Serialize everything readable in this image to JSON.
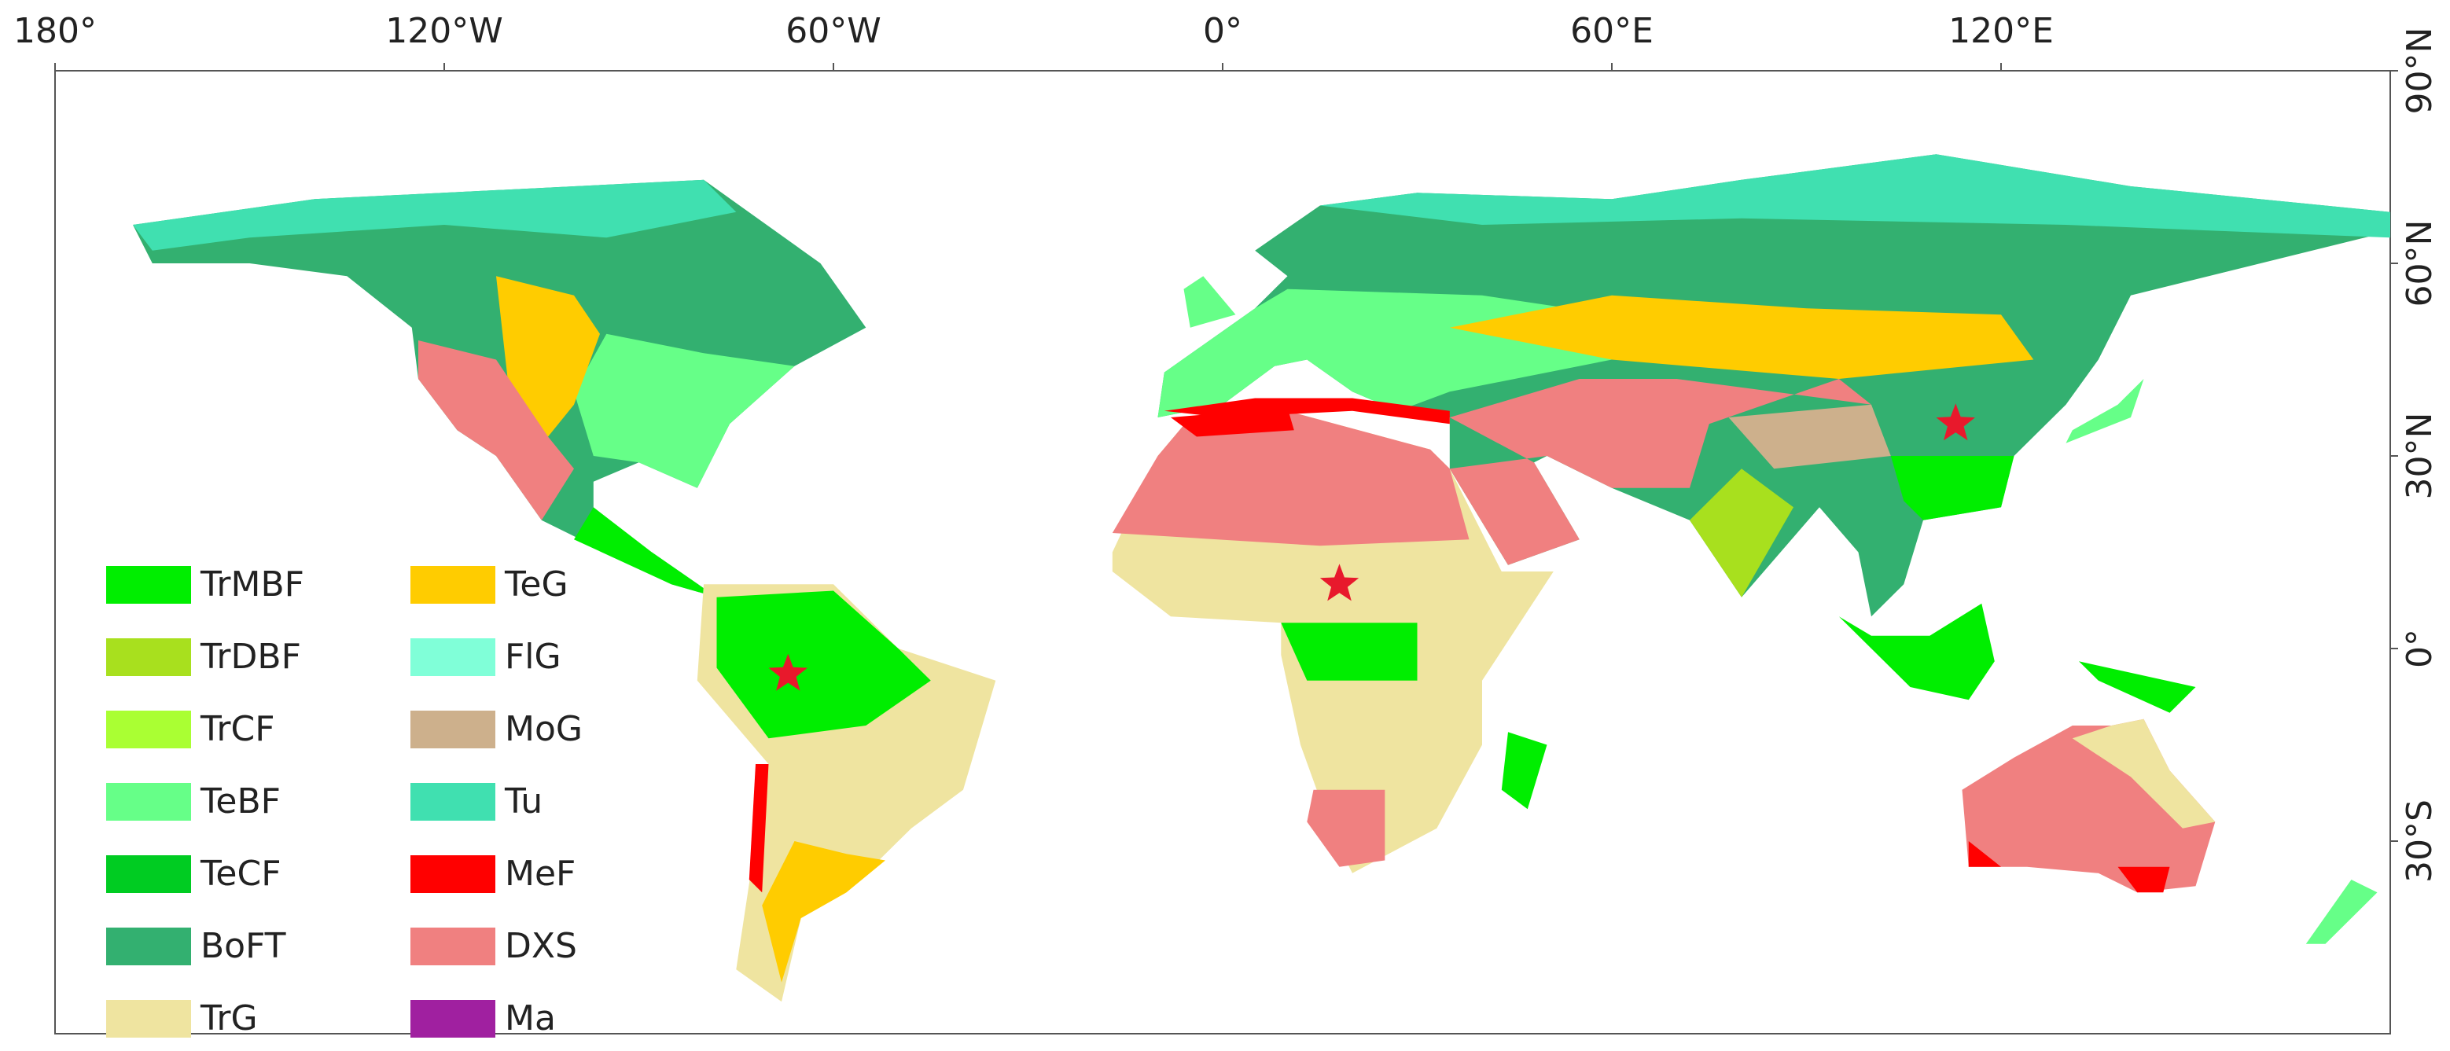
{
  "map": {
    "xticks": [
      {
        "value": -180,
        "label": "180°"
      },
      {
        "value": -120,
        "label": "120°W"
      },
      {
        "value": -60,
        "label": "60°W"
      },
      {
        "value": 0,
        "label": "0°"
      },
      {
        "value": 60,
        "label": "60°E"
      },
      {
        "value": 120,
        "label": "120°E"
      }
    ],
    "yticks": [
      {
        "value": 90,
        "label": "90°N"
      },
      {
        "value": 60,
        "label": "60°N"
      },
      {
        "value": 30,
        "label": "30°N"
      },
      {
        "value": 0,
        "label": "0°"
      },
      {
        "value": -30,
        "label": "30°S"
      }
    ],
    "xlim": [
      -180,
      180
    ],
    "ylim": [
      -60,
      90
    ],
    "legend": [
      {
        "label": "TrMBF",
        "color": "#00ee00"
      },
      {
        "label": "TrDBF",
        "color": "#a8e01e"
      },
      {
        "label": "TrCF",
        "color": "#aaff33"
      },
      {
        "label": "TeBF",
        "color": "#66ff88"
      },
      {
        "label": "TeCF",
        "color": "#00cc22"
      },
      {
        "label": "BoFT",
        "color": "#33b070"
      },
      {
        "label": "TrG",
        "color": "#efe4a0"
      },
      {
        "label": "TeG",
        "color": "#ffcc00"
      },
      {
        "label": "FlG",
        "color": "#80ffd8"
      },
      {
        "label": "MoG",
        "color": "#cdb08c"
      },
      {
        "label": "Tu",
        "color": "#40e0b0"
      },
      {
        "label": "MeF",
        "color": "#ff0000"
      },
      {
        "label": "DXS",
        "color": "#f08080"
      },
      {
        "label": "Ma",
        "color": "#a020a0"
      }
    ],
    "sites": [
      {
        "lon": -67,
        "lat": -4
      },
      {
        "lon": 18,
        "lat": 10
      },
      {
        "lon": 113,
        "lat": 35
      }
    ]
  }
}
